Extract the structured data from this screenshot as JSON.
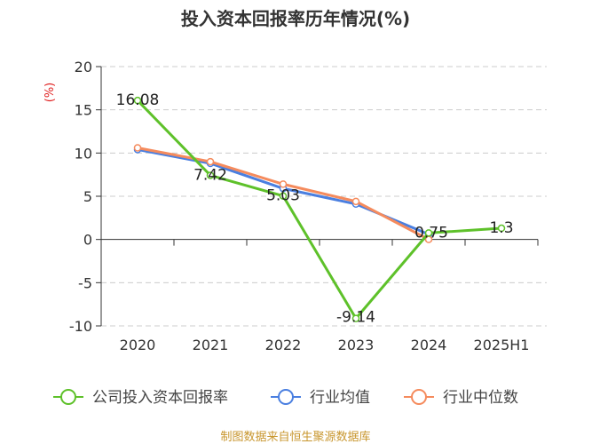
{
  "chart_data": {
    "type": "line",
    "title": "投入资本回报率历年情况(%)",
    "ylabel": "(%)",
    "ylim": [
      -10,
      20
    ],
    "yticks": [
      20,
      15,
      10,
      5,
      0,
      -5,
      -10
    ],
    "grid": true,
    "legend_placement": "bottom",
    "categories": [
      "2020",
      "2021",
      "2022",
      "2023",
      "2024",
      "2025H1"
    ],
    "series": [
      {
        "name": "公司投入资本回报率",
        "color": "#5ec12a",
        "values": [
          16.08,
          7.42,
          5.03,
          -9.14,
          0.75,
          1.3
        ],
        "labels": [
          "16.08",
          "7.42",
          "5.03",
          "-9.14",
          "0.75",
          "1.3"
        ]
      },
      {
        "name": "行业均值",
        "color": "#4a7fe0",
        "values": [
          10.4,
          8.8,
          5.9,
          4.1,
          0.6,
          null
        ]
      },
      {
        "name": "行业中位数",
        "color": "#f58b5d",
        "values": [
          10.6,
          9.0,
          6.4,
          4.4,
          0.0,
          null
        ]
      }
    ]
  },
  "source": "制图数据来自恒生聚源数据库"
}
